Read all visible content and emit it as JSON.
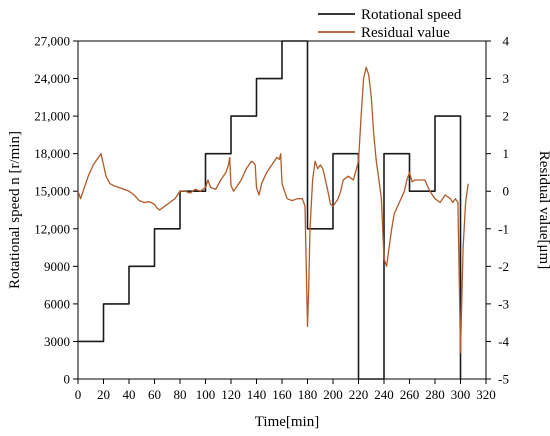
{
  "chart_data": {
    "type": "line",
    "xlabel": "Time[min]",
    "ylabel_left": "Rotational speed n [r/min]",
    "ylabel_right": "Residual value[μm]",
    "xlim": [
      0,
      320
    ],
    "ylim_left": [
      0,
      27000
    ],
    "ylim_right": [
      -5,
      4
    ],
    "x_ticks": [
      0,
      20,
      40,
      60,
      80,
      100,
      120,
      140,
      160,
      180,
      200,
      220,
      240,
      260,
      280,
      300,
      320
    ],
    "y_left_ticks": [
      0,
      3000,
      6000,
      9000,
      12000,
      15000,
      18000,
      21000,
      24000,
      27000
    ],
    "y_left_tick_labels": [
      "0",
      "3000",
      "6000",
      "9000",
      "12,000",
      "15,000",
      "18,000",
      "21,000",
      "24,000",
      "27,000"
    ],
    "y_right_ticks": [
      -5,
      -4,
      -3,
      -2,
      -1,
      0,
      1,
      2,
      3,
      4
    ],
    "grid": false,
    "legend_position": "top-center",
    "series": [
      {
        "name": "Rotational speed",
        "axis": "left",
        "color": "#1a1a1a",
        "x": [
          0,
          20,
          20,
          40,
          40,
          60,
          60,
          80,
          80,
          100,
          100,
          120,
          120,
          140,
          140,
          160,
          160,
          180,
          180,
          200,
          200,
          220,
          220,
          240,
          240,
          260,
          260,
          280,
          280,
          300,
          300
        ],
        "y": [
          3000,
          3000,
          6000,
          6000,
          9000,
          9000,
          12000,
          12000,
          15000,
          15000,
          18000,
          18000,
          21000,
          21000,
          24000,
          24000,
          27000,
          27000,
          12000,
          12000,
          18000,
          18000,
          0,
          0,
          18000,
          18000,
          15000,
          15000,
          21000,
          21000,
          0
        ]
      },
      {
        "name": "Residual value",
        "axis": "right",
        "color": "#b05a2a",
        "x": [
          0,
          2,
          5,
          8,
          12,
          16,
          18,
          20,
          22,
          25,
          28,
          32,
          36,
          40,
          44,
          48,
          52,
          56,
          60,
          62,
          64,
          68,
          72,
          76,
          80,
          84,
          88,
          92,
          96,
          100,
          102,
          104,
          108,
          112,
          116,
          118,
          119,
          120,
          122,
          124,
          128,
          132,
          136,
          138,
          139,
          140,
          142,
          144,
          148,
          152,
          156,
          158,
          159,
          160,
          162,
          164,
          168,
          172,
          176,
          178,
          180,
          181,
          182,
          184,
          186,
          188,
          190,
          192,
          194,
          196,
          198,
          200,
          202,
          204,
          206,
          208,
          212,
          216,
          220,
          222,
          224,
          226,
          228,
          230,
          232,
          234,
          236,
          238,
          240,
          242,
          244,
          246,
          248,
          252,
          256,
          258,
          260,
          262,
          264,
          268,
          272,
          276,
          280,
          284,
          288,
          292,
          294,
          296,
          298,
          300,
          302,
          304,
          306
        ],
        "y": [
          0.0,
          -0.2,
          0.1,
          0.4,
          0.7,
          0.9,
          1.0,
          0.7,
          0.4,
          0.2,
          0.15,
          0.1,
          0.05,
          0.0,
          -0.1,
          -0.25,
          -0.3,
          -0.28,
          -0.35,
          -0.45,
          -0.5,
          -0.4,
          -0.3,
          -0.2,
          0.0,
          0.0,
          -0.05,
          0.05,
          0.0,
          0.1,
          0.3,
          0.1,
          0.05,
          0.3,
          0.5,
          0.7,
          0.9,
          0.15,
          0.0,
          0.1,
          0.3,
          0.6,
          0.8,
          0.75,
          0.7,
          0.1,
          -0.1,
          0.2,
          0.5,
          0.7,
          0.9,
          0.85,
          1.0,
          0.2,
          0.0,
          -0.2,
          -0.25,
          -0.2,
          -0.2,
          -0.4,
          -3.6,
          -2.5,
          -1.0,
          0.3,
          0.8,
          0.6,
          0.7,
          0.6,
          0.3,
          0.0,
          -0.35,
          -0.4,
          -0.3,
          -0.2,
          0.0,
          0.3,
          0.4,
          0.3,
          0.8,
          2.0,
          3.0,
          3.3,
          3.1,
          2.5,
          1.5,
          0.8,
          0.3,
          -0.2,
          -1.8,
          -2.0,
          -1.5,
          -1.0,
          -0.6,
          -0.3,
          0.0,
          0.3,
          0.5,
          0.25,
          0.3,
          0.3,
          0.3,
          0.0,
          -0.2,
          -0.3,
          -0.1,
          -0.2,
          -0.3,
          -0.2,
          -0.3,
          -4.3,
          -1.5,
          -0.3,
          0.2
        ]
      }
    ]
  }
}
